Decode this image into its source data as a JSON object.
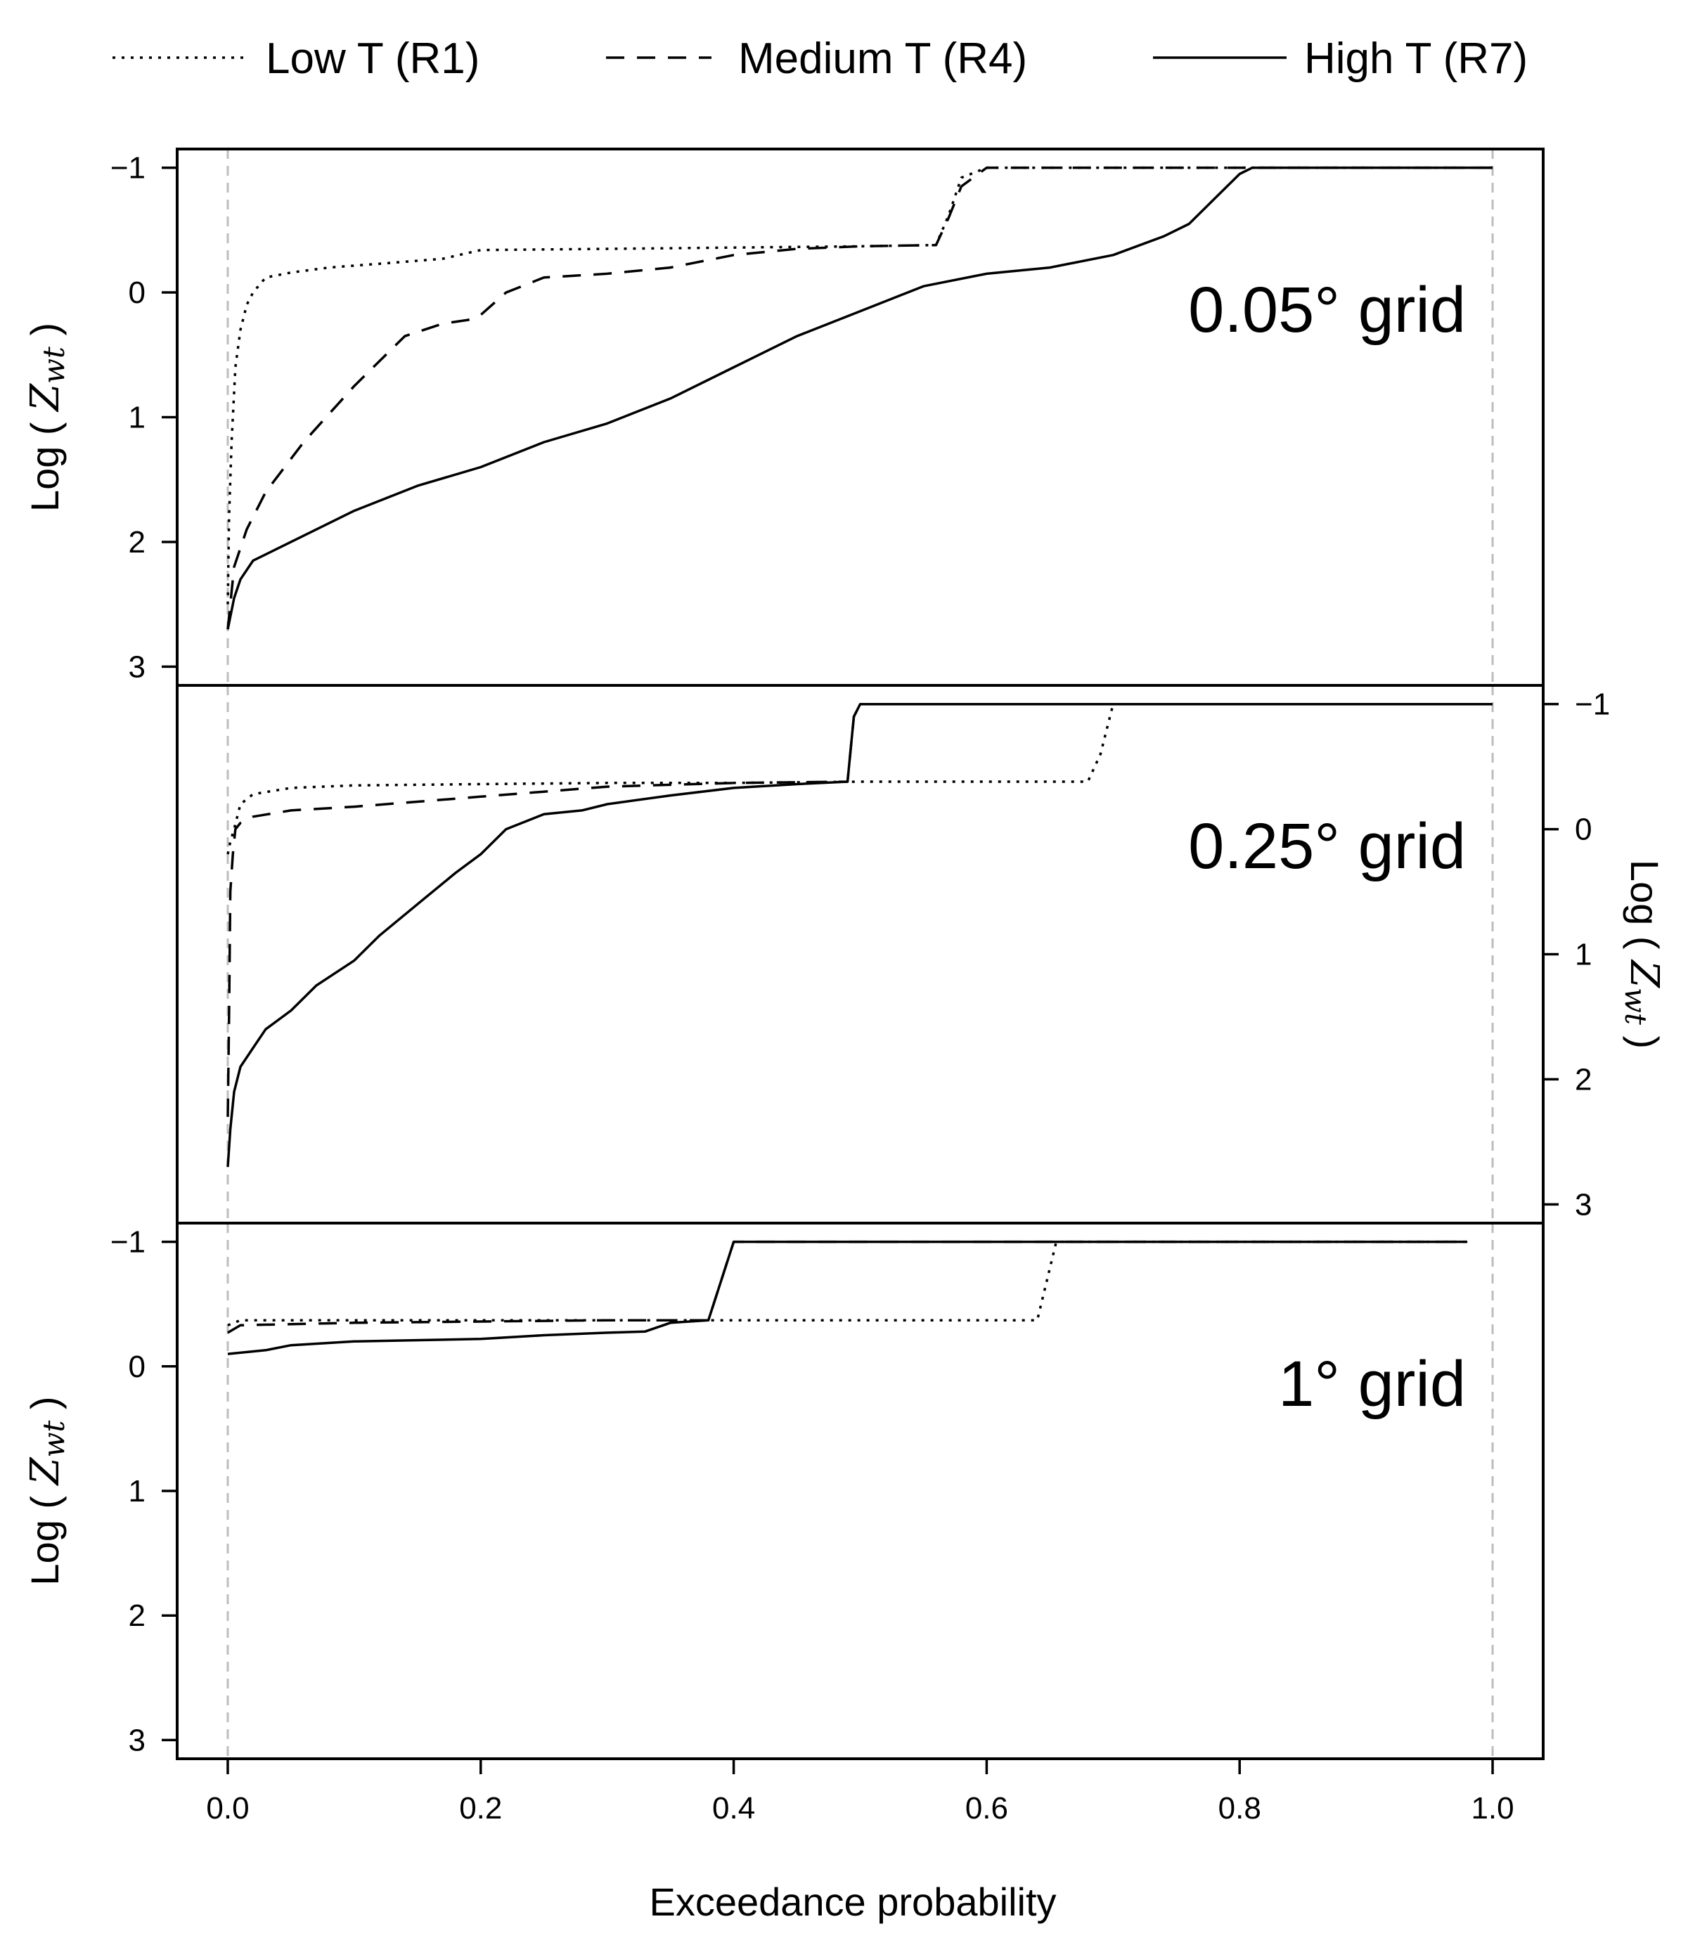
{
  "chart_data": {
    "type": "line",
    "xlabel": "Exceedance probability",
    "xlim": [
      -0.04,
      1.04
    ],
    "x_ticks": [
      0.0,
      0.2,
      0.4,
      0.6,
      0.8,
      1.0
    ],
    "x_tick_labels": [
      "0.0",
      "0.2",
      "0.4",
      "0.6",
      "0.8",
      "1.0"
    ],
    "ylim_reversed": [
      -1.15,
      3.15
    ],
    "y_ticks": [
      -1,
      0,
      1,
      2,
      3
    ],
    "y_tick_labels": [
      "−1",
      "0",
      "1",
      "2",
      "3"
    ],
    "ylabel_prefix": "Log (",
    "ylabel_symbol": "Z",
    "ylabel_subscript": "wt",
    "ylabel_suffix": ")",
    "reference_lines_x": [
      0.0,
      1.0
    ],
    "legend": {
      "position": "top",
      "entries": [
        {
          "label": "Low T (R1)",
          "style": "dotted"
        },
        {
          "label": "Medium T (R4)",
          "style": "dashed"
        },
        {
          "label": "High T (R7)",
          "style": "solid"
        }
      ]
    },
    "panels": [
      {
        "label": "0.05° grid",
        "y_axis_side": "left",
        "series": [
          {
            "name": "Low T (R1)",
            "style": "dotted",
            "x": [
              0.0,
              0.001,
              0.003,
              0.006,
              0.01,
              0.015,
              0.02,
              0.03,
              0.05,
              0.08,
              0.12,
              0.17,
              0.2,
              0.3,
              0.4,
              0.5,
              0.56,
              0.57,
              0.58,
              0.6,
              0.7,
              0.8,
              0.9,
              1.0
            ],
            "y": [
              2.5,
              1.8,
              1.2,
              0.6,
              0.3,
              0.1,
              0.0,
              -0.12,
              -0.16,
              -0.2,
              -0.23,
              -0.27,
              -0.34,
              -0.35,
              -0.36,
              -0.37,
              -0.38,
              -0.62,
              -0.92,
              -1.0,
              -1.0,
              -1.0,
              -1.0,
              -1.0
            ]
          },
          {
            "name": "Medium T (R4)",
            "style": "dashed",
            "x": [
              0.0,
              0.005,
              0.015,
              0.03,
              0.06,
              0.1,
              0.14,
              0.17,
              0.19,
              0.2,
              0.22,
              0.25,
              0.3,
              0.35,
              0.4,
              0.45,
              0.5,
              0.56,
              0.57,
              0.58,
              0.6,
              0.7,
              0.8,
              0.9,
              1.0
            ],
            "y": [
              2.7,
              2.2,
              1.9,
              1.6,
              1.2,
              0.75,
              0.35,
              0.25,
              0.22,
              0.18,
              0.0,
              -0.12,
              -0.15,
              -0.2,
              -0.3,
              -0.35,
              -0.37,
              -0.38,
              -0.6,
              -0.85,
              -1.0,
              -1.0,
              -1.0,
              -1.0,
              -1.0
            ]
          },
          {
            "name": "High T (R7)",
            "style": "solid",
            "x": [
              0.0,
              0.005,
              0.01,
              0.02,
              0.04,
              0.07,
              0.1,
              0.15,
              0.2,
              0.25,
              0.3,
              0.35,
              0.4,
              0.45,
              0.5,
              0.55,
              0.6,
              0.65,
              0.7,
              0.74,
              0.76,
              0.78,
              0.8,
              0.81,
              0.9,
              1.0
            ],
            "y": [
              2.7,
              2.45,
              2.3,
              2.15,
              2.05,
              1.9,
              1.75,
              1.55,
              1.4,
              1.2,
              1.05,
              0.85,
              0.6,
              0.35,
              0.15,
              -0.05,
              -0.15,
              -0.2,
              -0.3,
              -0.45,
              -0.55,
              -0.75,
              -0.95,
              -1.0,
              -1.0,
              -1.0
            ]
          }
        ]
      },
      {
        "label": "0.25° grid",
        "y_axis_side": "right",
        "series": [
          {
            "name": "Low T (R1)",
            "style": "dotted",
            "x": [
              0.0,
              0.002,
              0.005,
              0.01,
              0.02,
              0.05,
              0.1,
              0.2,
              0.3,
              0.4,
              0.5,
              0.6,
              0.68,
              0.69,
              0.7,
              0.8,
              0.9,
              1.0
            ],
            "y": [
              0.2,
              0.1,
              0.0,
              -0.2,
              -0.28,
              -0.33,
              -0.35,
              -0.36,
              -0.37,
              -0.37,
              -0.38,
              -0.38,
              -0.38,
              -0.6,
              -1.0,
              -1.0,
              -1.0,
              -1.0
            ]
          },
          {
            "name": "Medium T (R4)",
            "style": "dashed",
            "x": [
              0.0,
              0.001,
              0.002,
              0.004,
              0.006,
              0.01,
              0.02,
              0.05,
              0.1,
              0.15,
              0.2,
              0.25,
              0.3,
              0.4,
              0.49,
              0.495,
              0.5,
              0.52,
              0.6,
              0.8,
              1.0
            ],
            "y": [
              2.3,
              1.5,
              0.5,
              0.2,
              0.0,
              -0.05,
              -0.1,
              -0.15,
              -0.18,
              -0.22,
              -0.26,
              -0.3,
              -0.34,
              -0.37,
              -0.38,
              -0.9,
              -1.0,
              -1.0,
              -1.0,
              -1.0,
              -1.0
            ]
          },
          {
            "name": "High T (R7)",
            "style": "solid",
            "x": [
              0.0,
              0.002,
              0.005,
              0.01,
              0.02,
              0.03,
              0.05,
              0.07,
              0.1,
              0.12,
              0.15,
              0.18,
              0.2,
              0.22,
              0.25,
              0.28,
              0.3,
              0.35,
              0.4,
              0.45,
              0.49,
              0.495,
              0.5,
              0.51,
              0.6,
              0.8,
              1.0
            ],
            "y": [
              2.7,
              2.4,
              2.1,
              1.9,
              1.75,
              1.6,
              1.45,
              1.25,
              1.05,
              0.85,
              0.6,
              0.35,
              0.2,
              0.0,
              -0.12,
              -0.15,
              -0.2,
              -0.27,
              -0.33,
              -0.36,
              -0.38,
              -0.9,
              -1.0,
              -1.0,
              -1.0,
              -1.0,
              -1.0
            ]
          }
        ]
      },
      {
        "label": "1° grid",
        "y_axis_side": "left",
        "series": [
          {
            "name": "Low T (R1)",
            "style": "dotted",
            "x": [
              0.0,
              0.01,
              0.1,
              0.2,
              0.3,
              0.4,
              0.5,
              0.6,
              0.64,
              0.655,
              0.7,
              0.8,
              0.9,
              0.98
            ],
            "y": [
              -0.33,
              -0.37,
              -0.37,
              -0.37,
              -0.37,
              -0.37,
              -0.37,
              -0.37,
              -0.37,
              -1.0,
              -1.0,
              -1.0,
              -1.0,
              -1.0
            ]
          },
          {
            "name": "Medium T (R4)",
            "style": "dashed",
            "x": [
              0.0,
              0.01,
              0.1,
              0.2,
              0.3,
              0.35,
              0.38,
              0.4,
              0.5,
              0.6,
              0.8,
              0.98
            ],
            "y": [
              -0.27,
              -0.33,
              -0.35,
              -0.36,
              -0.37,
              -0.37,
              -0.37,
              -1.0,
              -1.0,
              -1.0,
              -1.0,
              -1.0
            ]
          },
          {
            "name": "High T (R7)",
            "style": "solid",
            "x": [
              0.0,
              0.03,
              0.05,
              0.1,
              0.2,
              0.25,
              0.3,
              0.33,
              0.35,
              0.38,
              0.4,
              0.5,
              0.6,
              0.8,
              0.98
            ],
            "y": [
              -0.1,
              -0.13,
              -0.17,
              -0.2,
              -0.22,
              -0.25,
              -0.27,
              -0.28,
              -0.35,
              -0.37,
              -1.0,
              -1.0,
              -1.0,
              -1.0,
              -1.0
            ]
          }
        ]
      }
    ]
  }
}
